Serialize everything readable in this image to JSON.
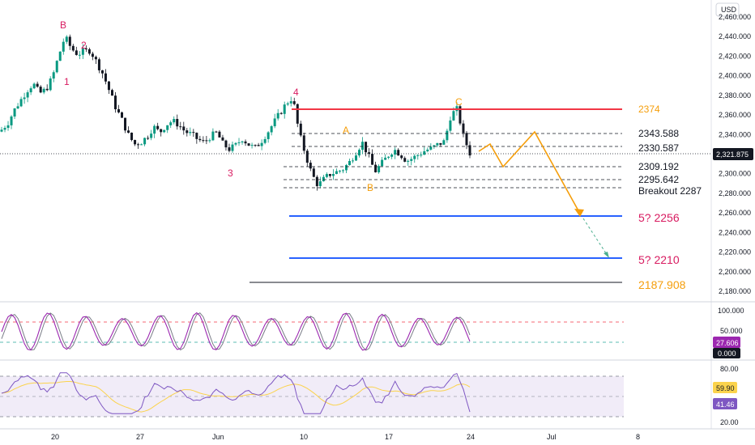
{
  "colors": {
    "up": "#089981",
    "down": "#131722",
    "resistance": "#f23645",
    "support": "#2962ff",
    "projection": "#f59e0b",
    "wave_red": "#d81b60",
    "wave_orange": "#f59e0b",
    "stoch_k": "#9c27b0",
    "stoch_d": "#787b86",
    "rsi": "#7e57c2",
    "rsi_ma": "#fbd34d",
    "rsi_band": "#ede7f6",
    "price_tag": "#131722"
  },
  "price_axis": {
    "currency": "USD",
    "labels": [
      "2,460.000",
      "2,440.000",
      "2,420.000",
      "2,400.000",
      "2,380.000",
      "2,360.000",
      "2,340.000",
      "2,320.000",
      "2,300.000",
      "2,280.000",
      "2,260.000",
      "2,240.000",
      "2,220.000",
      "2,200.000",
      "2,180.000"
    ],
    "current_price": "2,321.875"
  },
  "time_axis": {
    "labels": [
      "20",
      "27",
      "Jun",
      "10",
      "17",
      "24",
      "Jul",
      "8"
    ]
  },
  "levels": {
    "resistance": "2374",
    "l2343": "2343.588",
    "l2330": "2330.587",
    "l2309": "2309.192",
    "l2295": "2295.642",
    "breakout": "Breakout 2287",
    "target1": "5? 2256",
    "target2": "5? 2210",
    "target3": "2187.908"
  },
  "wave_labels": {
    "B_top": "B",
    "w1": "1",
    "w2": "2",
    "w3": "3",
    "w4": "4",
    "A": "A",
    "B": "B",
    "C": "C"
  },
  "stoch_panel": {
    "axis_labels": [
      "100.000",
      "50.000"
    ],
    "value_k": "27.606",
    "value_d": "0.000"
  },
  "rsi_panel": {
    "axis_labels": [
      "80.00",
      "20.00"
    ],
    "value_ma": "59.90",
    "value_rsi": "41.46"
  },
  "chart_data": {
    "type": "candlestick",
    "title": "",
    "ylim": [
      2180,
      2460
    ],
    "close_path": [
      2345,
      2352,
      2365,
      2375,
      2385,
      2392,
      2382,
      2386,
      2398,
      2420,
      2440,
      2428,
      2422,
      2425,
      2426,
      2414,
      2402,
      2385,
      2368,
      2355,
      2340,
      2330,
      2332,
      2338,
      2348,
      2342,
      2350,
      2354,
      2350,
      2343,
      2340,
      2335,
      2332,
      2338,
      2342,
      2330,
      2325,
      2329,
      2336,
      2330,
      2326,
      2333,
      2342,
      2352,
      2362,
      2372,
      2378,
      2342,
      2320,
      2300,
      2288,
      2295,
      2300,
      2302,
      2305,
      2312,
      2322,
      2332,
      2318,
      2302,
      2310,
      2318,
      2325,
      2320,
      2313,
      2316,
      2320,
      2324,
      2326,
      2330,
      2333,
      2360,
      2366,
      2338,
      2321
    ]
  }
}
